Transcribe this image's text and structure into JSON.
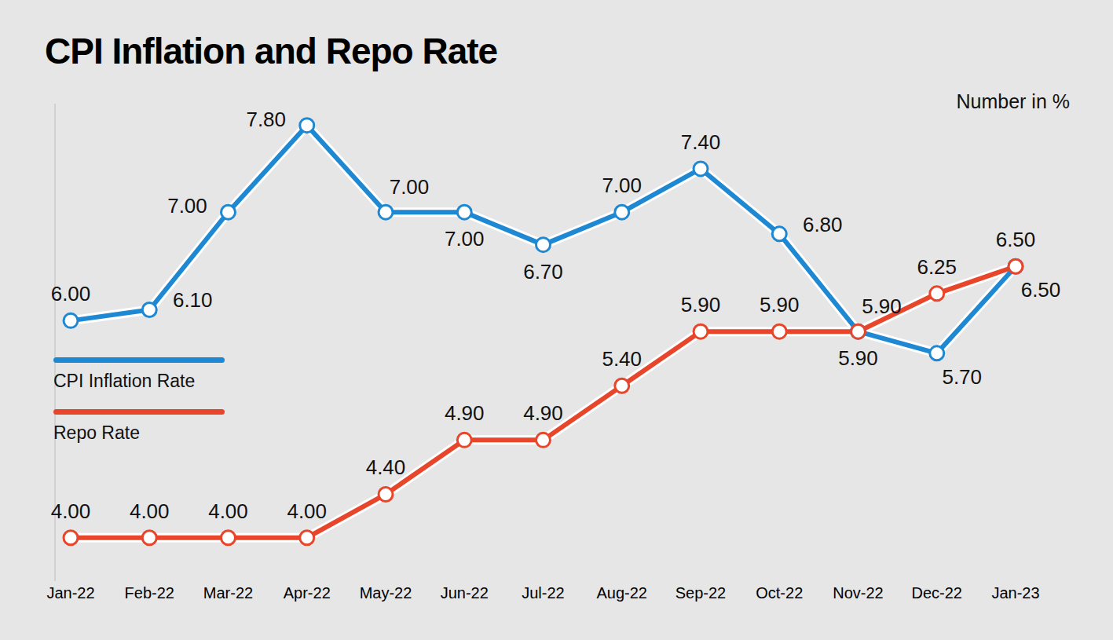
{
  "chart_data": {
    "type": "line",
    "title": "CPI Inflation and Repo Rate",
    "subtitle": "Number in %",
    "categories": [
      "Jan-22",
      "Feb-22",
      "Mar-22",
      "Apr-22",
      "May-22",
      "Jun-22",
      "Jul-22",
      "Aug-22",
      "Sep-22",
      "Oct-22",
      "Nov-22",
      "Dec-22",
      "Jan-23"
    ],
    "series": [
      {
        "name": "CPI Inflation Rate",
        "color": "#1e88d2",
        "marker": "circle",
        "values": [
          6.0,
          6.1,
          7.0,
          7.8,
          7.0,
          7.0,
          6.7,
          7.0,
          7.4,
          6.8,
          5.9,
          5.7,
          6.5
        ],
        "value_labels": [
          "6.00",
          "6.10",
          "7.00",
          "7.80",
          "7.00",
          "7.00",
          "6.70",
          "7.00",
          "7.40",
          "6.80",
          "5.90",
          "5.70",
          "6.50"
        ]
      },
      {
        "name": "Repo Rate",
        "color": "#e8462b",
        "marker": "circle",
        "values": [
          4.0,
          4.0,
          4.0,
          4.0,
          4.4,
          4.9,
          4.9,
          5.4,
          5.9,
          5.9,
          5.9,
          6.25,
          6.5
        ],
        "value_labels": [
          "4.00",
          "4.00",
          "4.00",
          "4.00",
          "4.40",
          "4.90",
          "4.90",
          "5.40",
          "5.90",
          "5.90",
          "5.90",
          "6.25",
          "6.50"
        ]
      }
    ],
    "ylim": [
      3.6,
      8.0
    ],
    "grid": false,
    "legend": "left",
    "data_labels": true,
    "tick_labels": "x"
  }
}
